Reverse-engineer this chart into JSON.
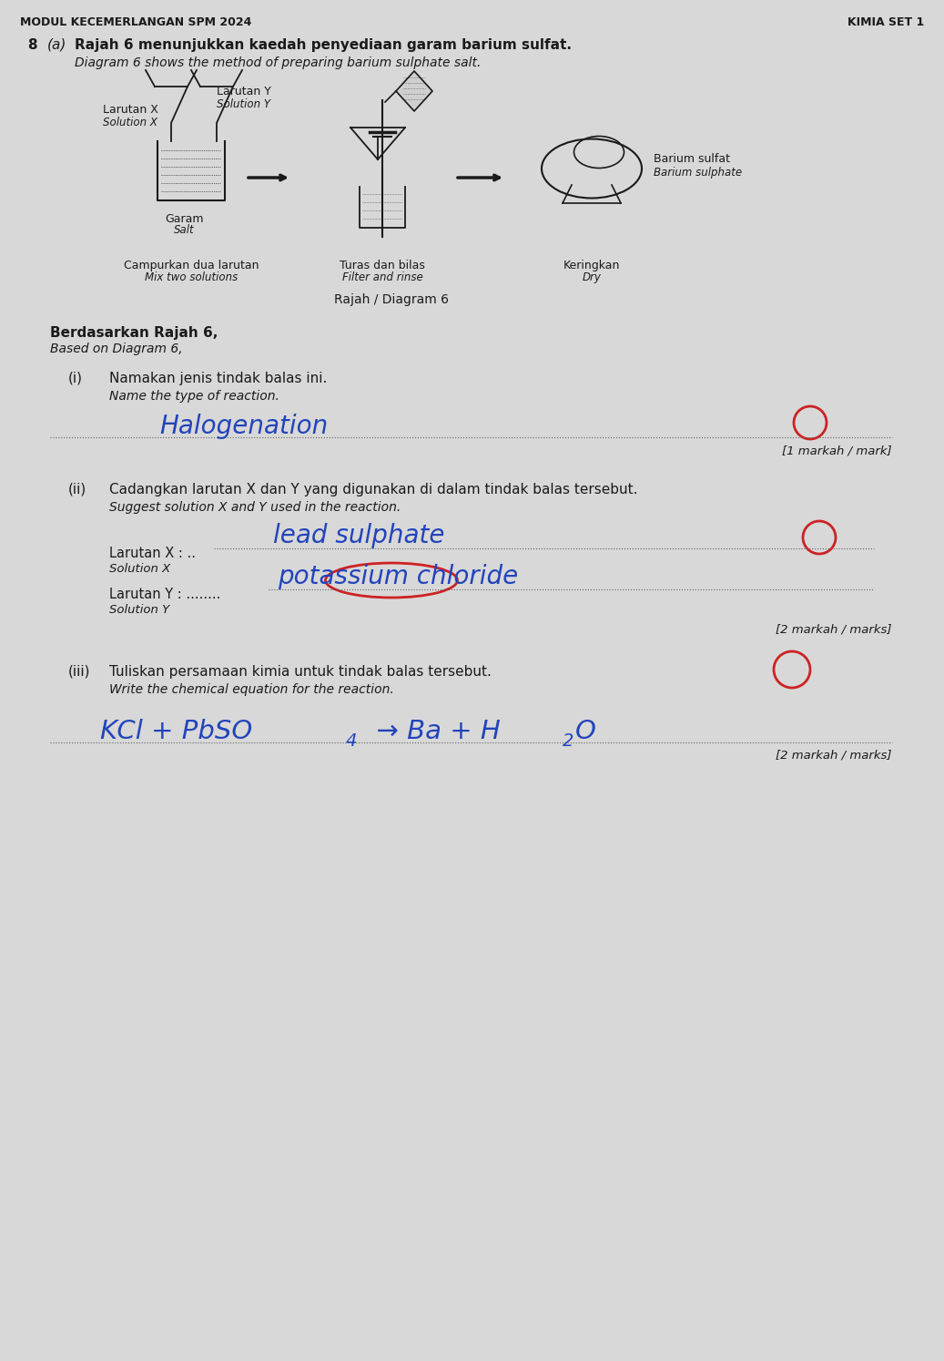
{
  "bg_color": "#d8d8d8",
  "header_left": "MODUL KECEMERLANGAN SPM 2024",
  "header_right": "KIMIA SET 1",
  "question_number": "8",
  "question_letter": "(a)",
  "question_malay": "Rajah 6 menunjukkan kaedah penyediaan garam barium sulfat.",
  "question_english": "Diagram 6 shows the method of preparing barium sulphate salt.",
  "diagram_caption": "Rajah / Diagram 6",
  "diagram_step1_malay": "Campurkan dua larutan",
  "diagram_step1_english": "Mix two solutions",
  "diagram_step2_malay": "Turas dan bilas",
  "diagram_step2_english": "Filter and rinse",
  "diagram_step3_malay": "Keringkan",
  "diagram_step3_english": "Dry",
  "larutan_x": "Larutan X",
  "solution_x": "Solution X",
  "larutan_y": "Larutan Y",
  "solution_y": "Solution Y",
  "garam": "Garam",
  "salt": "Salt",
  "barium_sulfat": "Barium sulfat",
  "barium_sulphate": "Barium sulphate",
  "based_malay": "Berdasarkan Rajah 6,",
  "based_english": "Based on Diagram 6,",
  "q_i_number": "(i)",
  "q_i_malay": "Namakan jenis tindak balas ini.",
  "q_i_english": "Name the type of reaction.",
  "q_i_answer": "Halogenation",
  "q_i_marks": "[1 markah / mark]",
  "q_ii_number": "(ii)",
  "q_ii_malay": "Cadangkan larutan X dan Y yang digunakan di dalam tindak balas tersebut.",
  "q_ii_english": "Suggest solution X and Y used in the reaction.",
  "larutan_x_label": "Larutan X : ..",
  "solution_x_label": "Solution X",
  "larutan_y_label": "Larutan Y : ........",
  "solution_y_label": "Solution Y",
  "answer_x": "lead sulphate",
  "answer_y": "potassium chloride",
  "q_ii_marks": "[2 markah / marks]",
  "q_iii_number": "(iii)",
  "q_iii_malay": "Tuliskan persamaan kimia untuk tindak balas tersebut.",
  "q_iii_english": "Write the chemical equation for the reaction.",
  "q_iii_marks": "[2 markah / marks]",
  "text_color": "#1a1a1a",
  "answer_color_blue": "#2244bb",
  "answer_color_red": "#cc2222",
  "dot_line_color": "#666666"
}
